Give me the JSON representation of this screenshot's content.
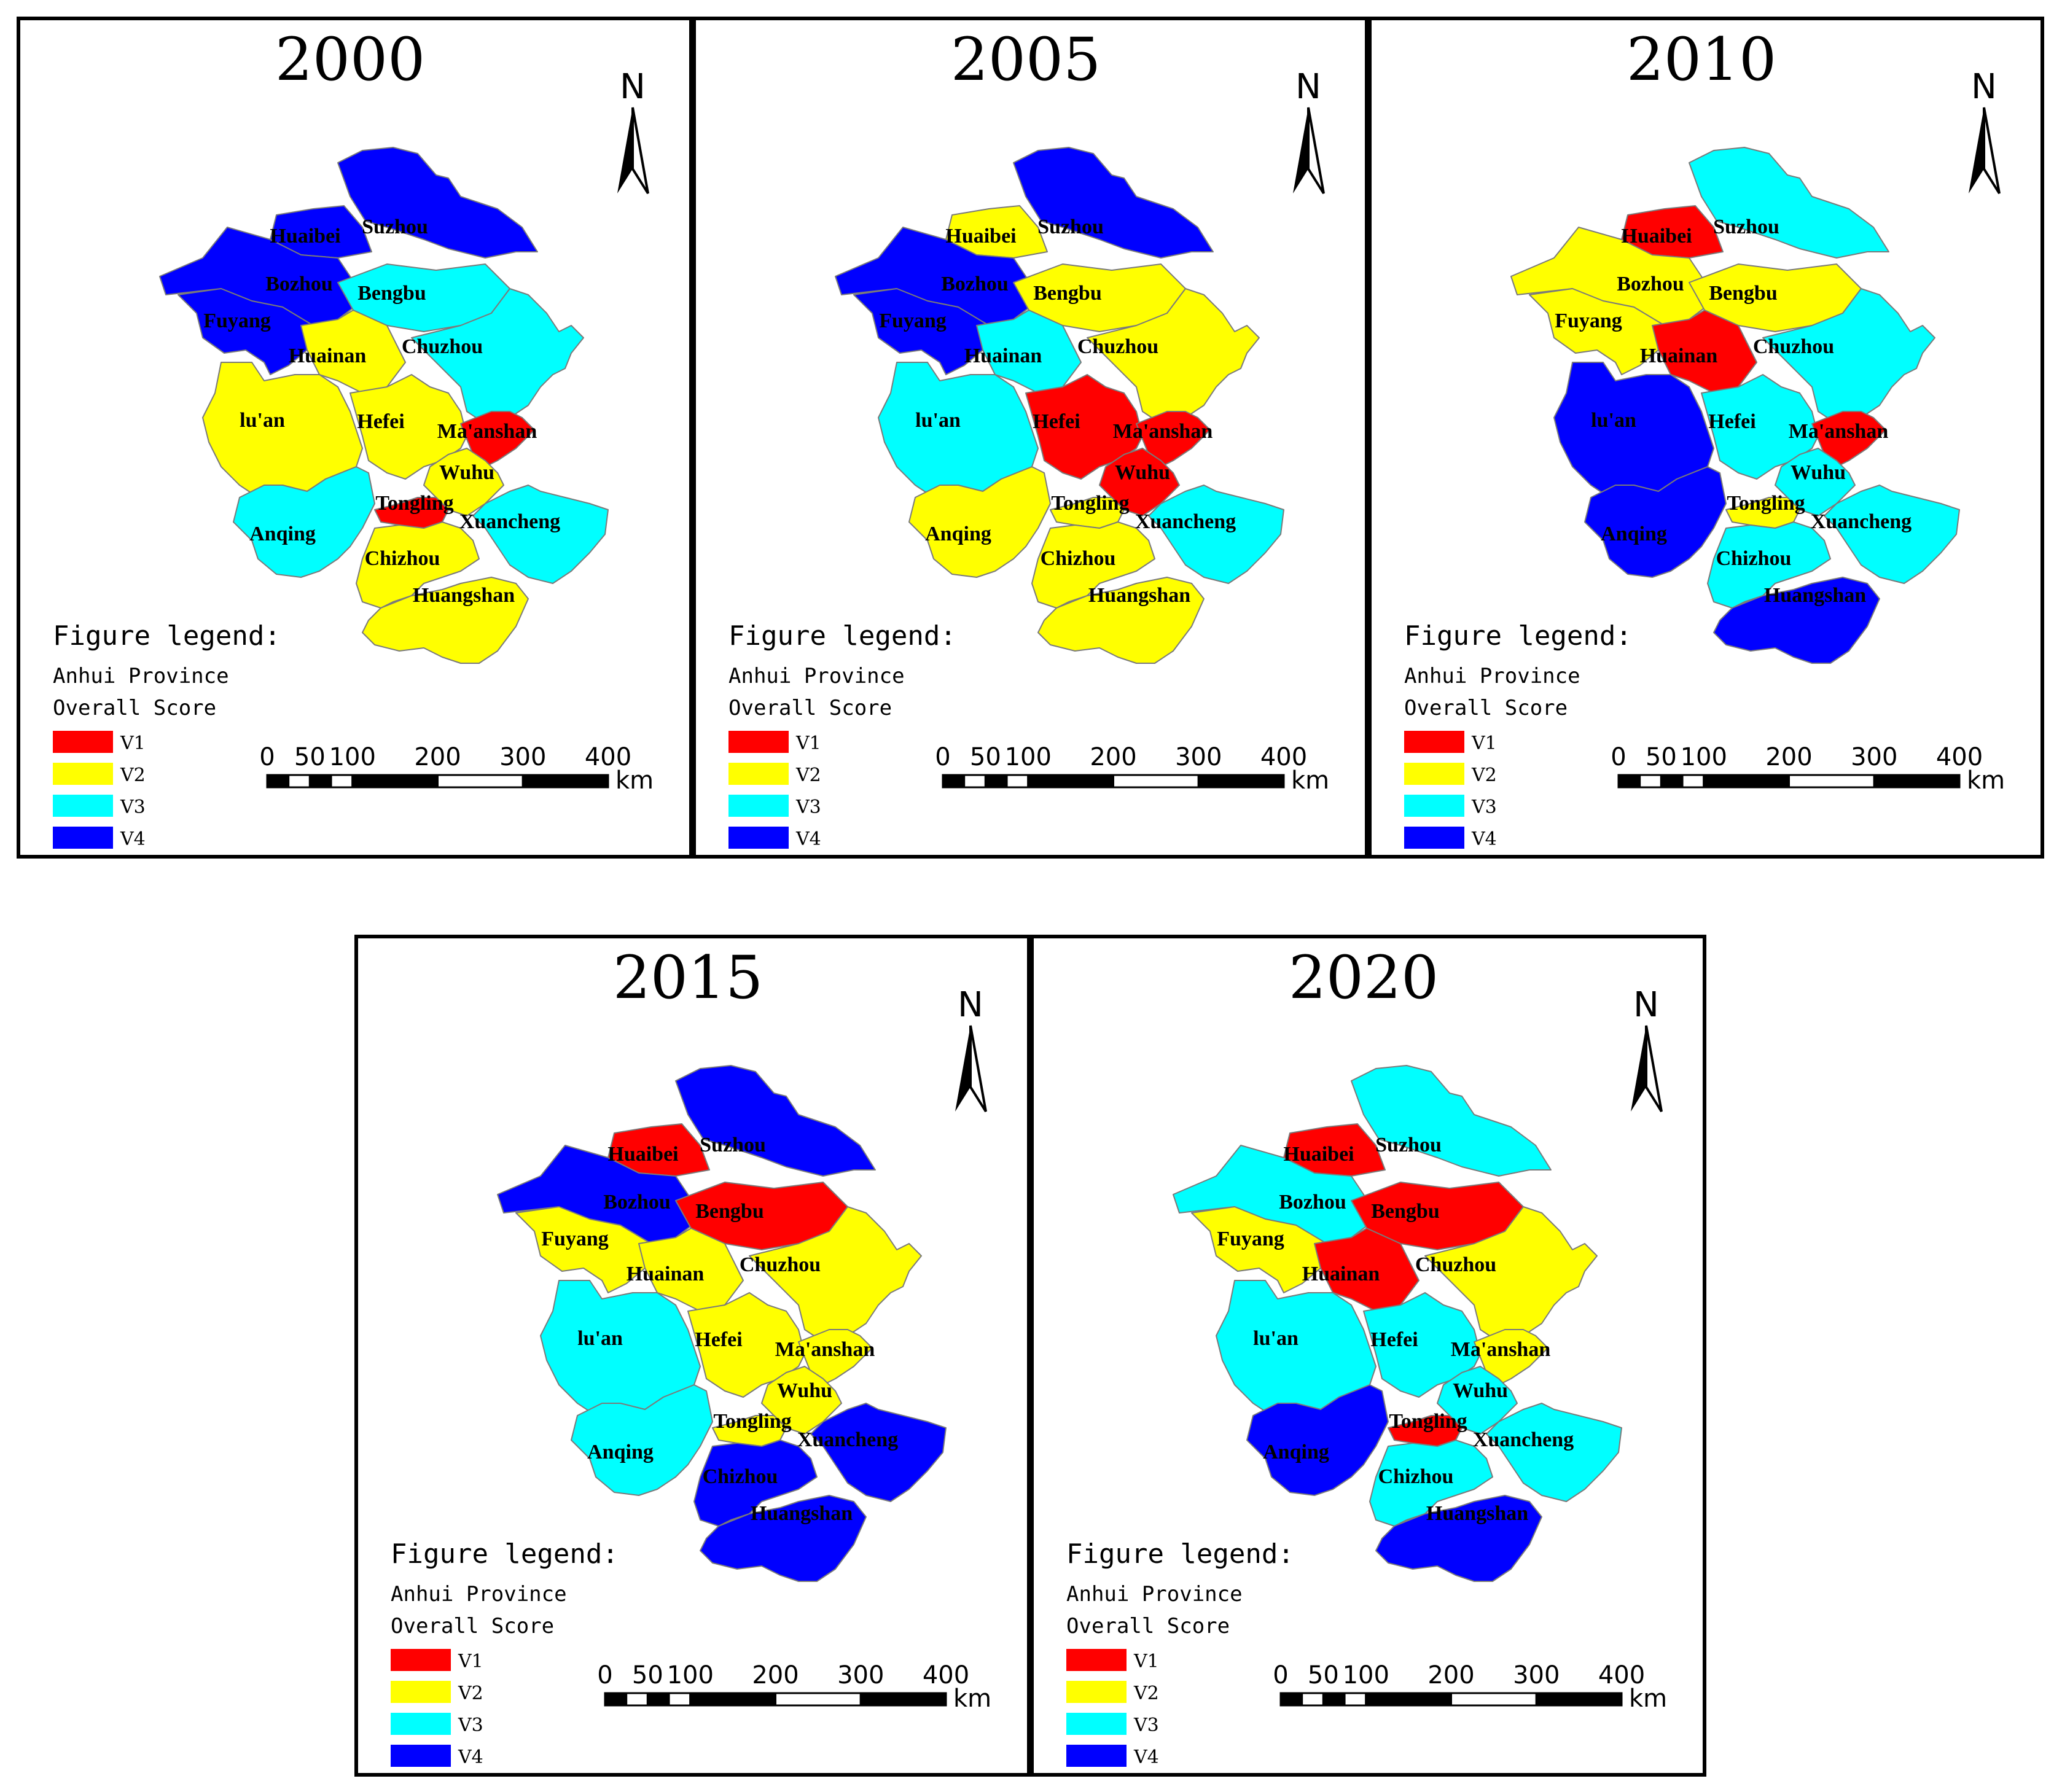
{
  "colors": {
    "V1": "#ff0000",
    "V2": "#ffff00",
    "V3": "#00ffff",
    "V4": "#0000ff"
  },
  "legend": {
    "title": "Figure legend:",
    "region": "Anhui Province",
    "metric": "Overall Score",
    "items": [
      "V1",
      "V2",
      "V3",
      "V4"
    ]
  },
  "north_label": "N",
  "scale": {
    "ticks": [
      "0",
      "50",
      "100",
      "200",
      "300",
      "400"
    ],
    "unit": "km"
  },
  "cities": [
    "Huaibei",
    "Suzhou",
    "Bozhou",
    "Bengbu",
    "Fuyang",
    "Huainan",
    "Chuzhou",
    "lu'an",
    "Hefei",
    "Ma'anshan",
    "Wuhu",
    "Tongling",
    "Anqing",
    "Xuancheng",
    "Chizhou",
    "Huangshan"
  ],
  "panels": [
    {
      "year": "2000",
      "classes": {
        "Huaibei": "V4",
        "Suzhou": "V4",
        "Bozhou": "V4",
        "Bengbu": "V3",
        "Fuyang": "V4",
        "Huainan": "V2",
        "Chuzhou": "V3",
        "lu'an": "V2",
        "Hefei": "V2",
        "Ma'anshan": "V1",
        "Wuhu": "V2",
        "Tongling": "V1",
        "Anqing": "V3",
        "Xuancheng": "V3",
        "Chizhou": "V2",
        "Huangshan": "V2"
      }
    },
    {
      "year": "2005",
      "classes": {
        "Huaibei": "V2",
        "Suzhou": "V4",
        "Bozhou": "V4",
        "Bengbu": "V2",
        "Fuyang": "V4",
        "Huainan": "V3",
        "Chuzhou": "V2",
        "lu'an": "V3",
        "Hefei": "V1",
        "Ma'anshan": "V1",
        "Wuhu": "V1",
        "Tongling": "V2",
        "Anqing": "V2",
        "Xuancheng": "V3",
        "Chizhou": "V2",
        "Huangshan": "V2"
      }
    },
    {
      "year": "2010",
      "classes": {
        "Huaibei": "V1",
        "Suzhou": "V3",
        "Bozhou": "V2",
        "Bengbu": "V2",
        "Fuyang": "V2",
        "Huainan": "V1",
        "Chuzhou": "V3",
        "lu'an": "V4",
        "Hefei": "V3",
        "Ma'anshan": "V1",
        "Wuhu": "V3",
        "Tongling": "V2",
        "Anqing": "V4",
        "Xuancheng": "V3",
        "Chizhou": "V3",
        "Huangshan": "V4"
      }
    },
    {
      "year": "2015",
      "classes": {
        "Huaibei": "V1",
        "Suzhou": "V4",
        "Bozhou": "V4",
        "Bengbu": "V1",
        "Fuyang": "V2",
        "Huainan": "V2",
        "Chuzhou": "V2",
        "lu'an": "V3",
        "Hefei": "V2",
        "Ma'anshan": "V2",
        "Wuhu": "V2",
        "Tongling": "V2",
        "Anqing": "V3",
        "Xuancheng": "V4",
        "Chizhou": "V4",
        "Huangshan": "V4"
      }
    },
    {
      "year": "2020",
      "classes": {
        "Huaibei": "V1",
        "Suzhou": "V3",
        "Bozhou": "V3",
        "Bengbu": "V1",
        "Fuyang": "V2",
        "Huainan": "V1",
        "Chuzhou": "V2",
        "lu'an": "V3",
        "Hefei": "V3",
        "Ma'anshan": "V2",
        "Wuhu": "V3",
        "Tongling": "V1",
        "Anqing": "V4",
        "Xuancheng": "V3",
        "Chizhou": "V3",
        "Huangshan": "V4"
      }
    }
  ]
}
